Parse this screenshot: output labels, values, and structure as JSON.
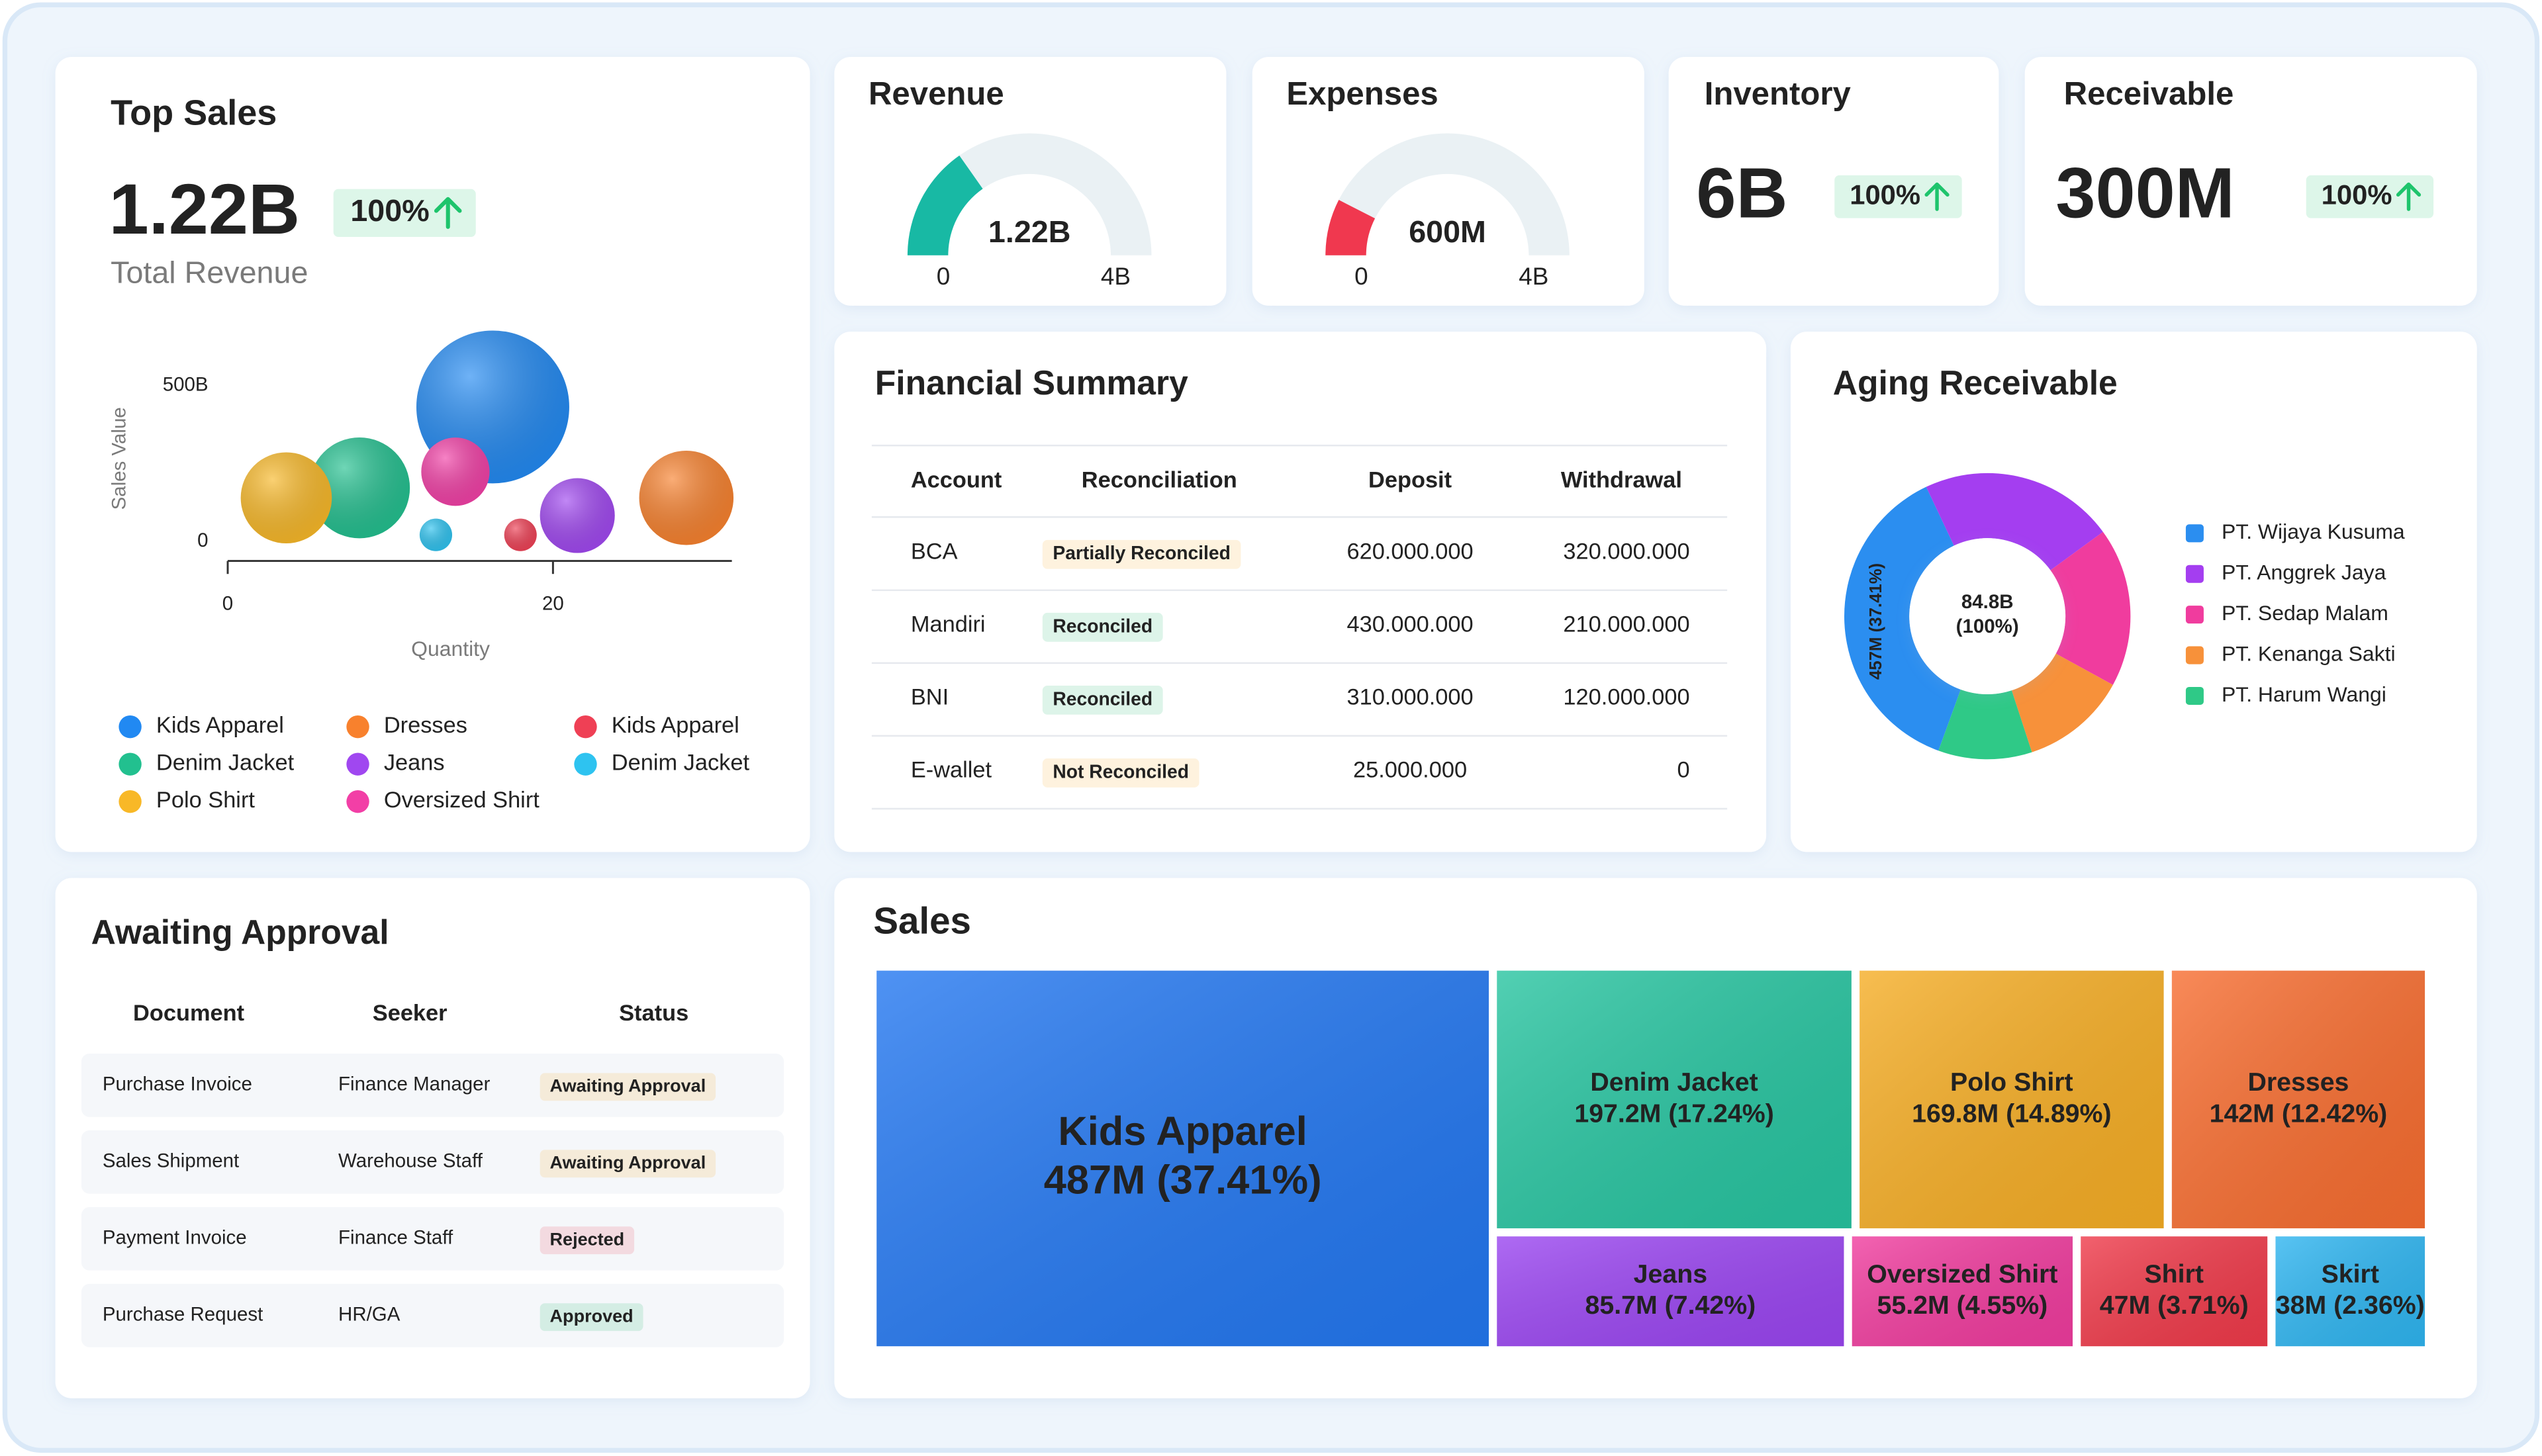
{
  "top_sales": {
    "title": "Top Sales",
    "value": "1.22B",
    "badge": "100%",
    "badge_color": "#1ec46c",
    "subtitle": "Total Revenue"
  },
  "inventory": {
    "title": "Inventory",
    "value": "6B",
    "badge": "100%",
    "badge_color": "#1ec46c"
  },
  "receivable": {
    "title": "Receivable",
    "value": "300M",
    "badge": "100%",
    "badge_color": "#1ec46c"
  },
  "financial_summary": {
    "title": "Financial Summary",
    "columns": [
      "Account",
      "Reconciliation",
      "Deposit",
      "Withdrawal"
    ],
    "deposit_color": "#1aab6a",
    "withdrawal_color": "#e0245e",
    "rows": [
      {
        "account": "BCA",
        "status": "Partially Reconciled",
        "status_color": "#f5a623",
        "deposit": "620.000.000",
        "withdrawal": "320.000.000"
      },
      {
        "account": "Mandiri",
        "status": "Reconciled",
        "status_color": "#1db86e",
        "deposit": "430.000.000",
        "withdrawal": "210.000.000"
      },
      {
        "account": "BNI",
        "status": "Reconciled",
        "status_color": "#1db86e",
        "deposit": "310.000.000",
        "withdrawal": "120.000.000"
      },
      {
        "account": "E-wallet",
        "status": "Not Reconciled",
        "status_color": "#f5a623",
        "deposit": "25.000.000",
        "withdrawal": "0"
      }
    ]
  },
  "awaiting_approval": {
    "title": "Awaiting Approval",
    "columns": [
      "Document",
      "Seeker",
      "Status"
    ],
    "seeker_color": "#1a9ad6",
    "rows": [
      {
        "document": "Purchase Invoice",
        "seeker": "Finance Manager",
        "status": "Awaiting Approval",
        "status_color": "#f5a623"
      },
      {
        "document": "Sales Shipment",
        "seeker": "Warehouse Staff",
        "status": "Awaiting Approval",
        "status_color": "#f5a623"
      },
      {
        "document": "Payment Invoice",
        "seeker": "Finance Staff",
        "status": "Rejected",
        "status_color": "#e8364f"
      },
      {
        "document": "Purchase Request",
        "seeker": "HR/GA",
        "status": "Approved",
        "status_color": "#1db86e"
      }
    ]
  },
  "chart_data": [
    {
      "type": "bubble",
      "x_label": "Quantity",
      "y_label": "Sales Value",
      "xlim": [
        0,
        31
      ],
      "ylim": [
        0,
        700
      ],
      "xticks": [
        0,
        20
      ],
      "yticks": [
        0,
        {
          "value": 500,
          "label": "500B"
        }
      ],
      "series": [
        {
          "name": "Kids Apparel",
          "color": "#2189f2",
          "x": [
            16.3
          ],
          "values": [
            432
          ],
          "sizes": [
            47
          ]
        },
        {
          "name": "Denim Jacket",
          "color": "#22c08f",
          "x": [
            8.1
          ],
          "values": [
            172
          ],
          "sizes": [
            31
          ]
        },
        {
          "name": "Polo Shirt",
          "color": "#f8b827",
          "x": [
            3.6
          ],
          "values": [
            140
          ],
          "sizes": [
            28
          ]
        },
        {
          "name": "Dresses",
          "color": "#f8812d",
          "x": [
            28.2
          ],
          "values": [
            140
          ],
          "sizes": [
            29
          ]
        },
        {
          "name": "Jeans",
          "color": "#a047f0",
          "x": [
            21.5
          ],
          "values": [
            83
          ],
          "sizes": [
            23
          ]
        },
        {
          "name": "Oversized Shirt",
          "color": "#f23fa6",
          "x": [
            14
          ],
          "values": [
            224
          ],
          "sizes": [
            21
          ]
        },
        {
          "name": "Kids Apparel",
          "color": "#ef4055",
          "x": [
            18
          ],
          "values": [
            21
          ],
          "sizes": [
            10
          ]
        },
        {
          "name": "Denim Jacket",
          "color": "#2ec3f0",
          "x": [
            12.8
          ],
          "values": [
            21
          ],
          "sizes": [
            10
          ]
        }
      ]
    },
    {
      "type": "gauge",
      "title": "Revenue",
      "value": 1.22,
      "value_label": "1.22B",
      "ylim": [
        0,
        4
      ],
      "yticks": [
        0,
        {
          "value": 4,
          "label": "4B"
        }
      ],
      "color": "#18b9a4"
    },
    {
      "type": "gauge",
      "title": "Expenses",
      "value": 0.6,
      "value_label": "600M",
      "ylim": [
        0,
        4
      ],
      "yticks": [
        0,
        {
          "value": 4,
          "label": "4B"
        }
      ],
      "color": "#f0384f"
    },
    {
      "type": "donut",
      "title": "Aging Receivable",
      "categories": [
        "PT. Wijaya Kusuma",
        "PT. Anggrek Jaya",
        "PT. Sedap Malam",
        "PT. Kenanga Sakti",
        "PT. Harum Wangi"
      ],
      "values": [
        37.41,
        22,
        18,
        12,
        10.59
      ],
      "value_labels": [
        "457M (37.41%)",
        null,
        null,
        null,
        null
      ],
      "colors": [
        "#2b8ef0",
        "#a43ef0",
        "#f03c9e",
        "#f7913a",
        "#2fc987"
      ],
      "center_label": "84.8B",
      "center_sublabel": "(100%)"
    },
    {
      "type": "treemap",
      "title": "Sales",
      "categories": [
        "Kids Apparel",
        "Denim Jacket",
        "Polo Shirt",
        "Dresses",
        "Jeans",
        "Oversized Shirt",
        "Shirt",
        "Skirt"
      ],
      "values": [
        487,
        197.2,
        169.8,
        142,
        85.7,
        55.2,
        47,
        38
      ],
      "value_labels": [
        "487M (37.41%)",
        "197.2M (17.24%)",
        "169.8M (14.89%)",
        "142M (12.42%)",
        "85.7M (7.42%)",
        "55.2M (4.55%)",
        "47M (3.71%)",
        "38M (2.36%)"
      ],
      "colors": [
        "#2377f0",
        "#27c4a0",
        "#f5ad25",
        "#f76d30",
        "#9a45f0",
        "#f03c9e",
        "#ef3a4a",
        "#2fb5f0"
      ]
    }
  ]
}
